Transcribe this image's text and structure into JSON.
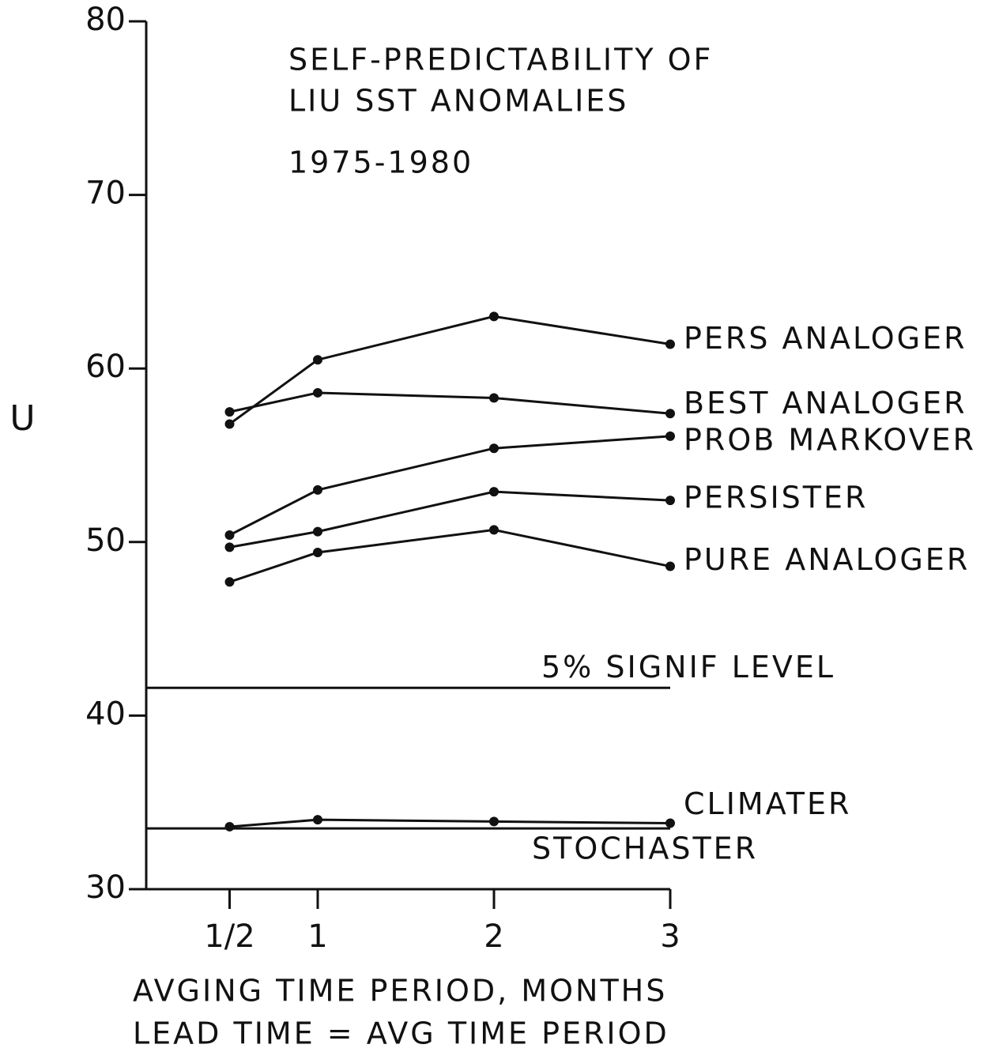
{
  "chart_data": {
    "type": "line",
    "title": [
      "SELF-PREDICTABILITY OF",
      "LIU SST ANOMALIES",
      "1975-1980"
    ],
    "ylabel": "U",
    "xlabel": [
      "AVGING TIME PERIOD, MONTHS",
      "LEAD TIME = AVG TIME PERIOD"
    ],
    "x": [
      0.5,
      1,
      2,
      3
    ],
    "xlim": [
      0,
      3
    ],
    "xticks": [
      {
        "value": 0.5,
        "label": "1/2"
      },
      1,
      2,
      3
    ],
    "ylim": [
      30,
      80
    ],
    "yticks": [
      30,
      40,
      50,
      60,
      70,
      80
    ],
    "color": "#111111",
    "series": [
      {
        "name": "PERS ANALOGER",
        "values": [
          56.8,
          60.5,
          63.0,
          61.4
        ]
      },
      {
        "name": "BEST ANALOGER",
        "values": [
          57.5,
          58.6,
          58.3,
          57.4
        ]
      },
      {
        "name": "PROB MARKOVER",
        "values": [
          50.4,
          53.0,
          55.4,
          56.1
        ]
      },
      {
        "name": "PERSISTER",
        "values": [
          49.7,
          50.6,
          52.9,
          52.4
        ]
      },
      {
        "name": "PURE ANALOGER",
        "values": [
          47.7,
          49.4,
          50.7,
          48.6
        ]
      },
      {
        "name": "CLIMATER",
        "values": [
          33.6,
          34.0,
          33.9,
          33.8
        ]
      }
    ],
    "reference_lines": [
      {
        "name": "5% SIGNIF LEVEL",
        "value": 41.6
      },
      {
        "name": "STOCHASTER",
        "value": 33.5
      }
    ]
  }
}
